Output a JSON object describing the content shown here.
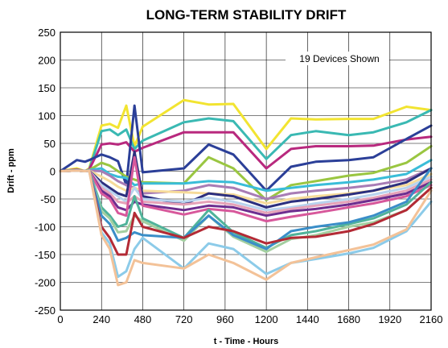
{
  "chart_data": {
    "type": "line",
    "title": "LONG-TERM STABILITY DRIFT",
    "xlabel": "t - Time - Hours",
    "ylabel": "Drift - ppm",
    "annotation": "19 Devices Shown",
    "xlim": [
      0,
      2160
    ],
    "ylim": [
      -250,
      250
    ],
    "xticks": [
      0,
      240,
      480,
      720,
      960,
      1200,
      1440,
      1680,
      1920,
      2160
    ],
    "yticks": [
      250,
      200,
      150,
      100,
      50,
      0,
      -50,
      -100,
      -150,
      -200,
      -250
    ],
    "grid": true,
    "x": [
      0,
      96,
      144,
      168,
      240,
      288,
      336,
      384,
      432,
      480,
      720,
      864,
      1008,
      1200,
      1344,
      1488,
      1680,
      1824,
      2016,
      2160
    ],
    "series": [
      {
        "color": "#f2e431",
        "values": [
          0,
          5,
          0,
          5,
          82,
          85,
          78,
          118,
          45,
          80,
          128,
          120,
          121,
          40,
          95,
          93,
          94,
          94,
          116,
          110
        ]
      },
      {
        "color": "#3ab9b3",
        "values": [
          0,
          2,
          0,
          3,
          72,
          75,
          65,
          75,
          40,
          55,
          88,
          95,
          90,
          22,
          65,
          72,
          65,
          70,
          88,
          110
        ]
      },
      {
        "color": "#b8297e",
        "values": [
          0,
          3,
          0,
          3,
          48,
          50,
          48,
          52,
          35,
          42,
          70,
          70,
          70,
          5,
          40,
          45,
          45,
          46,
          57,
          62
        ]
      },
      {
        "color": "#2b3f98",
        "values": [
          0,
          20,
          17,
          20,
          30,
          25,
          18,
          -25,
          118,
          -2,
          5,
          48,
          30,
          -35,
          8,
          17,
          20,
          25,
          58,
          82
        ]
      },
      {
        "color": "#9ac641",
        "values": [
          0,
          2,
          0,
          2,
          15,
          10,
          0,
          -10,
          -15,
          -20,
          -22,
          25,
          5,
          -52,
          -25,
          -18,
          -8,
          -3,
          15,
          45
        ]
      },
      {
        "color": "#3abdd8",
        "values": [
          0,
          2,
          0,
          2,
          5,
          -5,
          -10,
          -12,
          -25,
          -22,
          -22,
          -18,
          -20,
          -35,
          -30,
          -25,
          -20,
          -15,
          -5,
          20
        ]
      },
      {
        "color": "#a87cb5",
        "values": [
          0,
          1,
          0,
          1,
          0,
          -8,
          -18,
          -25,
          -30,
          -40,
          -35,
          -25,
          -30,
          -50,
          -40,
          -35,
          -30,
          -25,
          -15,
          5
        ]
      },
      {
        "color": "#f6db9a",
        "values": [
          0,
          1,
          0,
          1,
          -10,
          -18,
          -28,
          -35,
          -30,
          -35,
          -38,
          -40,
          -42,
          -58,
          -50,
          -45,
          -40,
          -35,
          -25,
          -5
        ]
      },
      {
        "color": "#2c2f7e",
        "values": [
          0,
          1,
          0,
          1,
          -20,
          -30,
          -40,
          -45,
          35,
          -45,
          -60,
          -40,
          -45,
          -65,
          -55,
          -50,
          -42,
          -35,
          -20,
          5
        ]
      },
      {
        "color": "#b8d3ee",
        "values": [
          0,
          1,
          0,
          1,
          -25,
          -35,
          -45,
          -55,
          -30,
          -50,
          -55,
          -48,
          -55,
          -70,
          -65,
          -58,
          -50,
          -42,
          -30,
          -10
        ]
      },
      {
        "color": "#e6a2b8",
        "values": [
          0,
          1,
          0,
          1,
          -30,
          -40,
          -55,
          -58,
          -45,
          -55,
          -60,
          -55,
          -60,
          -75,
          -68,
          -62,
          -55,
          -48,
          -35,
          -15
        ]
      },
      {
        "color": "#6d2d8f",
        "values": [
          0,
          1,
          0,
          1,
          -35,
          -45,
          -65,
          -70,
          -55,
          -60,
          -70,
          -62,
          -65,
          -80,
          -72,
          -68,
          -60,
          -52,
          -40,
          -20
        ]
      },
      {
        "color": "#d7589b",
        "values": [
          0,
          1,
          0,
          1,
          -40,
          -50,
          -75,
          -80,
          25,
          -62,
          -78,
          -68,
          -72,
          -90,
          -82,
          -75,
          -65,
          -58,
          -45,
          -25
        ]
      },
      {
        "color": "#50b39a",
        "values": [
          0,
          1,
          0,
          1,
          -65,
          -80,
          -100,
          -95,
          -45,
          -85,
          -120,
          -70,
          -110,
          -138,
          -115,
          -108,
          -95,
          -85,
          -60,
          -20
        ]
      },
      {
        "color": "#a3cfa0",
        "values": [
          0,
          1,
          0,
          1,
          -72,
          -85,
          -110,
          -108,
          -80,
          -90,
          -125,
          -80,
          -118,
          -145,
          -122,
          -115,
          -100,
          -92,
          -70,
          -30
        ]
      },
      {
        "color": "#3a8ec8",
        "values": [
          0,
          1,
          0,
          1,
          -80,
          -95,
          -125,
          -120,
          -110,
          -115,
          -120,
          -80,
          -115,
          -140,
          -108,
          -100,
          -92,
          -80,
          -55,
          5
        ]
      },
      {
        "color": "#b32a35",
        "values": [
          0,
          1,
          0,
          1,
          -100,
          -120,
          -150,
          -150,
          -75,
          -100,
          -120,
          -100,
          -108,
          -130,
          -120,
          -118,
          -108,
          -95,
          -70,
          -30
        ]
      },
      {
        "color": "#8ccbe9",
        "values": [
          0,
          1,
          0,
          1,
          -110,
          -130,
          -190,
          -180,
          -140,
          -120,
          -175,
          -130,
          -140,
          -185,
          -165,
          -158,
          -148,
          -138,
          -108,
          -55
        ]
      },
      {
        "color": "#f3c298",
        "values": [
          0,
          1,
          0,
          1,
          -115,
          -140,
          -205,
          -200,
          -160,
          -165,
          -175,
          -150,
          -165,
          -195,
          -165,
          -155,
          -142,
          -132,
          -105,
          -35
        ]
      }
    ]
  }
}
